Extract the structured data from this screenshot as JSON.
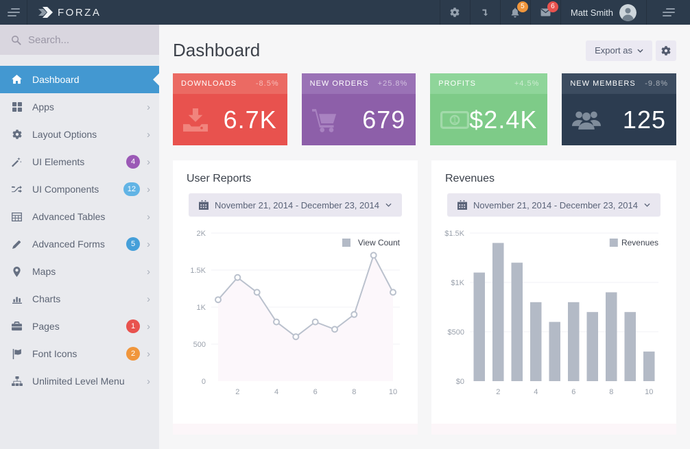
{
  "navbar": {
    "brand": "FORZA",
    "user_name": "Matt Smith",
    "notification_count": "5",
    "message_count": "6",
    "icons": [
      "menu",
      "gear",
      "level-down",
      "bell",
      "envelope",
      "avatar",
      "sidebar-toggle"
    ],
    "colors": {
      "background": "#2c3b4c",
      "notification_badge": "#f0963c",
      "message_badge": "#e8524e"
    }
  },
  "sidebar": {
    "search_placeholder": "Search...",
    "items": [
      {
        "label": "Dashboard",
        "icon": "home",
        "active": true
      },
      {
        "label": "Apps",
        "icon": "grid"
      },
      {
        "label": "Layout Options",
        "icon": "gear"
      },
      {
        "label": "UI Elements",
        "icon": "magic-wand",
        "badge": "4",
        "badge_color": "#9b59b6"
      },
      {
        "label": "UI Components",
        "icon": "shuffle",
        "badge": "12",
        "badge_color": "#62b4e5"
      },
      {
        "label": "Advanced Tables",
        "icon": "table"
      },
      {
        "label": "Advanced Forms",
        "icon": "pencil",
        "badge": "5",
        "badge_color": "#459fd9"
      },
      {
        "label": "Maps",
        "icon": "map-marker"
      },
      {
        "label": "Charts",
        "icon": "bar-chart"
      },
      {
        "label": "Pages",
        "icon": "briefcase",
        "badge": "1",
        "badge_color": "#e8524e"
      },
      {
        "label": "Font Icons",
        "icon": "flag",
        "badge": "2",
        "badge_color": "#f0963c"
      },
      {
        "label": "Unlimited Level Menu",
        "icon": "sitemap"
      }
    ],
    "colors": {
      "background": "#e9eaee",
      "search_background": "#d9d6df",
      "active_item": "#4398d1"
    }
  },
  "header": {
    "title": "Dashboard",
    "export_label": "Export as"
  },
  "stats": {
    "items": [
      {
        "title": "DOWNLOADS",
        "delta": "-8.5%",
        "value": "6.7K",
        "icon": "download",
        "header_bg": "#eb6a63",
        "body_bg": "#e8524e"
      },
      {
        "title": "NEW ORDERS",
        "delta": "+25.8%",
        "value": "679",
        "icon": "shopping-cart",
        "header_bg": "#9a72b6",
        "body_bg": "#8d5fa9"
      },
      {
        "title": "PROFITS",
        "delta": "+4.5%",
        "value": "$2.4K",
        "icon": "banknote",
        "header_bg": "#8fd59a",
        "body_bg": "#7ecb88"
      },
      {
        "title": "NEW MEMBERS",
        "delta": "-9.8%",
        "value": "125",
        "icon": "users",
        "header_bg": "#3c4c60",
        "body_bg": "#2c3c50"
      }
    ]
  },
  "panels": [
    {
      "title": "User Reports",
      "date_range": "November 21, 2014 - December 23, 2014"
    },
    {
      "title": "Revenues",
      "date_range": "November 21, 2014 - December 23, 2014"
    }
  ],
  "chart_data": [
    {
      "type": "line",
      "title": "User Reports",
      "legend": "View Count",
      "legend_position": "top-right",
      "x": [
        1,
        2,
        3,
        4,
        5,
        6,
        7,
        8,
        9,
        10
      ],
      "values": [
        1100,
        1400,
        1200,
        800,
        600,
        800,
        700,
        900,
        1700,
        1200
      ],
      "xlabel": "",
      "ylabel": "",
      "ylim": [
        0,
        2000
      ],
      "yticks": [
        {
          "v": 0,
          "label": "0"
        },
        {
          "v": 500,
          "label": "500"
        },
        {
          "v": 1000,
          "label": "1K"
        },
        {
          "v": 1500,
          "label": "1.5K"
        },
        {
          "v": 2000,
          "label": "2K"
        }
      ],
      "xticks": [
        2,
        4,
        6,
        8,
        10
      ],
      "grid": true,
      "colors": {
        "line": "#bac1cd",
        "area": "#fcf7fb",
        "marker_fill": "#ffffff",
        "legend_swatch": "#b3bac6"
      }
    },
    {
      "type": "bar",
      "title": "Revenues",
      "legend": "Revenues",
      "legend_position": "top-right",
      "x": [
        1,
        2,
        3,
        4,
        5,
        6,
        7,
        8,
        9,
        10
      ],
      "values": [
        1100,
        1400,
        1200,
        800,
        600,
        800,
        700,
        900,
        700,
        300
      ],
      "xlabel": "",
      "ylabel": "",
      "ylim": [
        0,
        1500
      ],
      "yticks": [
        {
          "v": 0,
          "label": "$0"
        },
        {
          "v": 500,
          "label": "$500"
        },
        {
          "v": 1000,
          "label": "$1K"
        },
        {
          "v": 1500,
          "label": "$1.5K"
        }
      ],
      "xticks": [
        2,
        4,
        6,
        8,
        10
      ],
      "grid": true,
      "colors": {
        "bar": "#b3bac6",
        "legend_swatch": "#b3bac6"
      }
    }
  ]
}
